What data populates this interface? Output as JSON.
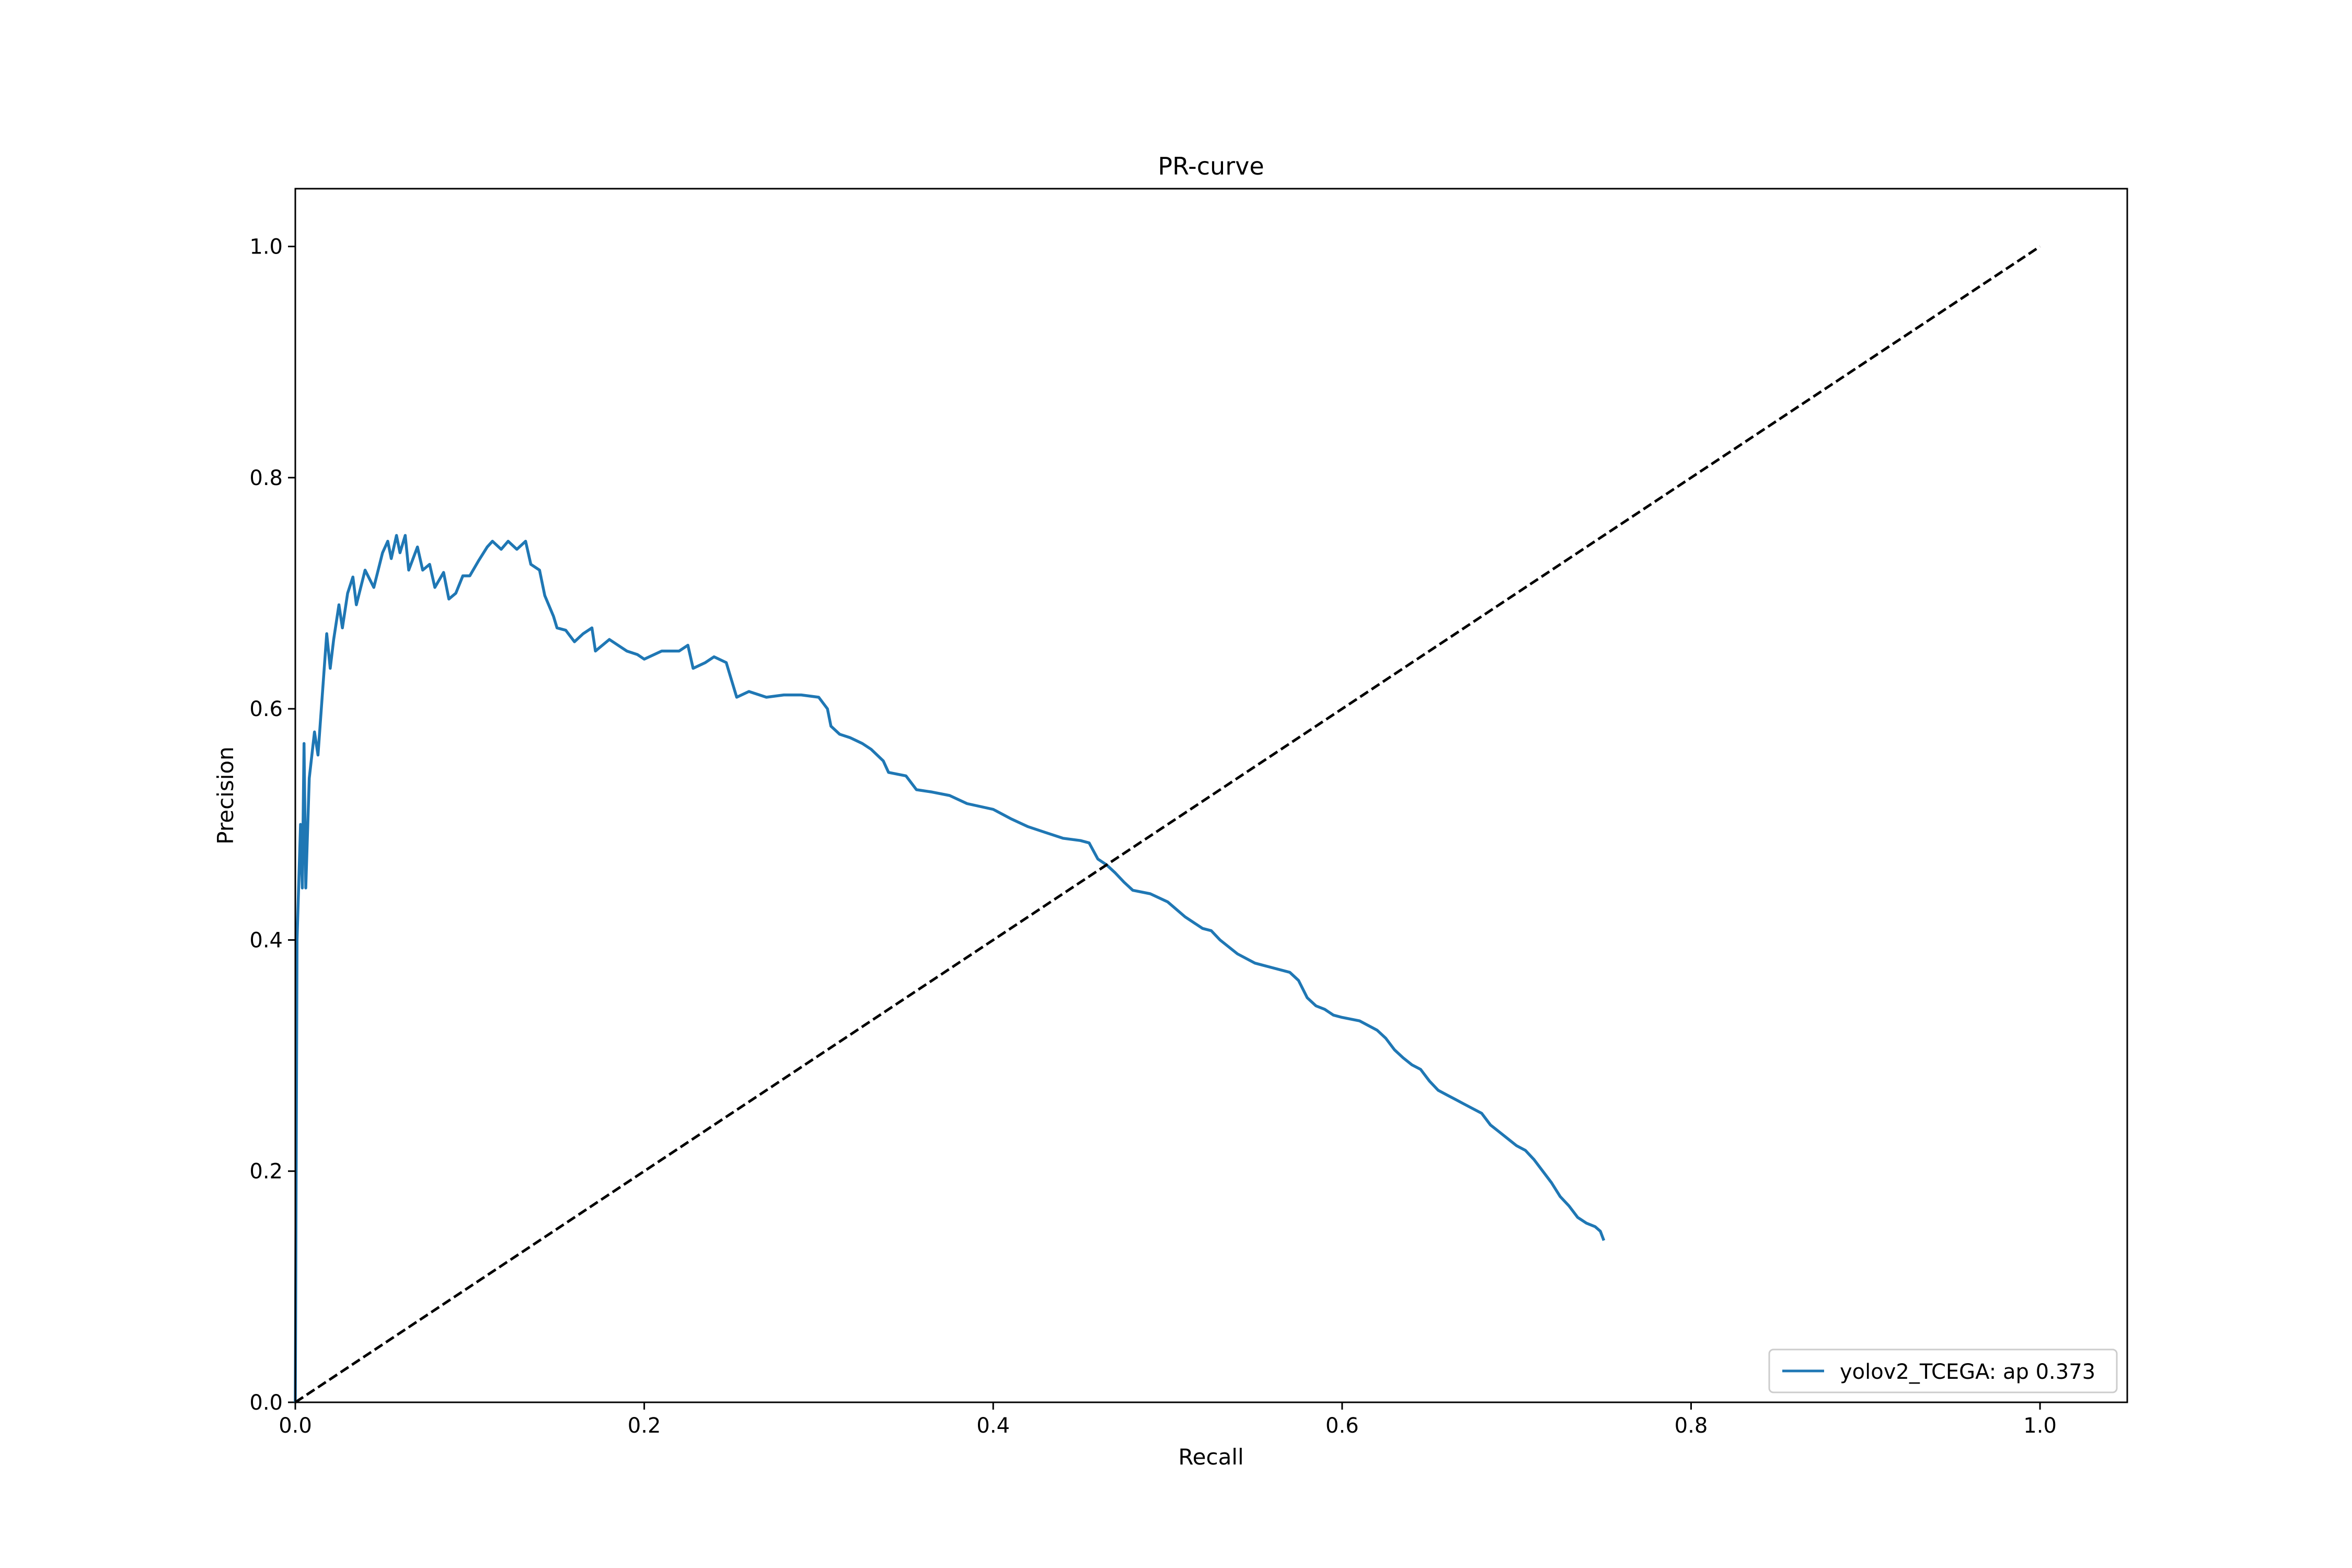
{
  "chart_data": {
    "type": "line",
    "title": "PR-curve",
    "xlabel": "Recall",
    "ylabel": "Precision",
    "xlim": [
      0.0,
      1.05
    ],
    "ylim": [
      0.0,
      1.05
    ],
    "xticks": [
      0.0,
      0.2,
      0.4,
      0.6,
      0.8,
      1.0
    ],
    "yticks": [
      0.0,
      0.2,
      0.4,
      0.6,
      0.8,
      1.0
    ],
    "tick_format": "0.0",
    "grid": false,
    "legend_position": "lower-right",
    "series": [
      {
        "name": "yolov2_TCEGA: ap 0.373",
        "color": "#1f77b4",
        "style": "solid",
        "points": [
          [
            0.0,
            0.0
          ],
          [
            0.001,
            0.4
          ],
          [
            0.003,
            0.5
          ],
          [
            0.004,
            0.445
          ],
          [
            0.005,
            0.57
          ],
          [
            0.006,
            0.445
          ],
          [
            0.008,
            0.54
          ],
          [
            0.011,
            0.58
          ],
          [
            0.013,
            0.56
          ],
          [
            0.018,
            0.665
          ],
          [
            0.02,
            0.635
          ],
          [
            0.022,
            0.66
          ],
          [
            0.025,
            0.69
          ],
          [
            0.027,
            0.67
          ],
          [
            0.03,
            0.7
          ],
          [
            0.033,
            0.714
          ],
          [
            0.035,
            0.69
          ],
          [
            0.04,
            0.72
          ],
          [
            0.045,
            0.705
          ],
          [
            0.05,
            0.735
          ],
          [
            0.053,
            0.745
          ],
          [
            0.055,
            0.73
          ],
          [
            0.058,
            0.75
          ],
          [
            0.06,
            0.735
          ],
          [
            0.063,
            0.75
          ],
          [
            0.065,
            0.72
          ],
          [
            0.07,
            0.74
          ],
          [
            0.073,
            0.72
          ],
          [
            0.077,
            0.725
          ],
          [
            0.08,
            0.705
          ],
          [
            0.085,
            0.718
          ],
          [
            0.088,
            0.695
          ],
          [
            0.092,
            0.7
          ],
          [
            0.096,
            0.715
          ],
          [
            0.1,
            0.715
          ],
          [
            0.105,
            0.728
          ],
          [
            0.11,
            0.74
          ],
          [
            0.113,
            0.745
          ],
          [
            0.118,
            0.738
          ],
          [
            0.122,
            0.745
          ],
          [
            0.127,
            0.738
          ],
          [
            0.132,
            0.745
          ],
          [
            0.135,
            0.725
          ],
          [
            0.14,
            0.72
          ],
          [
            0.143,
            0.698
          ],
          [
            0.148,
            0.68
          ],
          [
            0.15,
            0.67
          ],
          [
            0.155,
            0.668
          ],
          [
            0.16,
            0.658
          ],
          [
            0.165,
            0.665
          ],
          [
            0.17,
            0.67
          ],
          [
            0.172,
            0.65
          ],
          [
            0.18,
            0.66
          ],
          [
            0.185,
            0.655
          ],
          [
            0.19,
            0.65
          ],
          [
            0.196,
            0.647
          ],
          [
            0.2,
            0.643
          ],
          [
            0.21,
            0.65
          ],
          [
            0.22,
            0.65
          ],
          [
            0.225,
            0.655
          ],
          [
            0.228,
            0.635
          ],
          [
            0.235,
            0.64
          ],
          [
            0.24,
            0.645
          ],
          [
            0.247,
            0.64
          ],
          [
            0.25,
            0.625
          ],
          [
            0.253,
            0.61
          ],
          [
            0.26,
            0.615
          ],
          [
            0.27,
            0.61
          ],
          [
            0.28,
            0.612
          ],
          [
            0.29,
            0.612
          ],
          [
            0.3,
            0.61
          ],
          [
            0.305,
            0.6
          ],
          [
            0.307,
            0.585
          ],
          [
            0.312,
            0.578
          ],
          [
            0.318,
            0.575
          ],
          [
            0.325,
            0.57
          ],
          [
            0.33,
            0.565
          ],
          [
            0.337,
            0.555
          ],
          [
            0.34,
            0.545
          ],
          [
            0.35,
            0.542
          ],
          [
            0.356,
            0.53
          ],
          [
            0.365,
            0.528
          ],
          [
            0.375,
            0.525
          ],
          [
            0.385,
            0.518
          ],
          [
            0.4,
            0.513
          ],
          [
            0.41,
            0.505
          ],
          [
            0.42,
            0.498
          ],
          [
            0.43,
            0.493
          ],
          [
            0.44,
            0.488
          ],
          [
            0.45,
            0.486
          ],
          [
            0.455,
            0.484
          ],
          [
            0.46,
            0.47
          ],
          [
            0.465,
            0.465
          ],
          [
            0.47,
            0.458
          ],
          [
            0.475,
            0.45
          ],
          [
            0.48,
            0.443
          ],
          [
            0.49,
            0.44
          ],
          [
            0.5,
            0.433
          ],
          [
            0.51,
            0.42
          ],
          [
            0.52,
            0.41
          ],
          [
            0.525,
            0.408
          ],
          [
            0.53,
            0.4
          ],
          [
            0.54,
            0.388
          ],
          [
            0.55,
            0.38
          ],
          [
            0.56,
            0.376
          ],
          [
            0.57,
            0.372
          ],
          [
            0.575,
            0.365
          ],
          [
            0.58,
            0.35
          ],
          [
            0.585,
            0.343
          ],
          [
            0.59,
            0.34
          ],
          [
            0.595,
            0.335
          ],
          [
            0.6,
            0.333
          ],
          [
            0.61,
            0.33
          ],
          [
            0.62,
            0.322
          ],
          [
            0.625,
            0.315
          ],
          [
            0.63,
            0.305
          ],
          [
            0.635,
            0.298
          ],
          [
            0.64,
            0.292
          ],
          [
            0.645,
            0.288
          ],
          [
            0.65,
            0.278
          ],
          [
            0.655,
            0.27
          ],
          [
            0.66,
            0.266
          ],
          [
            0.665,
            0.262
          ],
          [
            0.67,
            0.258
          ],
          [
            0.68,
            0.25
          ],
          [
            0.685,
            0.24
          ],
          [
            0.69,
            0.234
          ],
          [
            0.695,
            0.228
          ],
          [
            0.7,
            0.222
          ],
          [
            0.705,
            0.218
          ],
          [
            0.71,
            0.21
          ],
          [
            0.715,
            0.2
          ],
          [
            0.72,
            0.19
          ],
          [
            0.725,
            0.178
          ],
          [
            0.73,
            0.17
          ],
          [
            0.735,
            0.16
          ],
          [
            0.74,
            0.155
          ],
          [
            0.745,
            0.152
          ],
          [
            0.748,
            0.148
          ],
          [
            0.75,
            0.14
          ]
        ]
      },
      {
        "name": "",
        "color": "#000000",
        "style": "dashed",
        "points": [
          [
            0.0,
            0.0
          ],
          [
            1.0,
            1.0
          ]
        ]
      }
    ]
  }
}
